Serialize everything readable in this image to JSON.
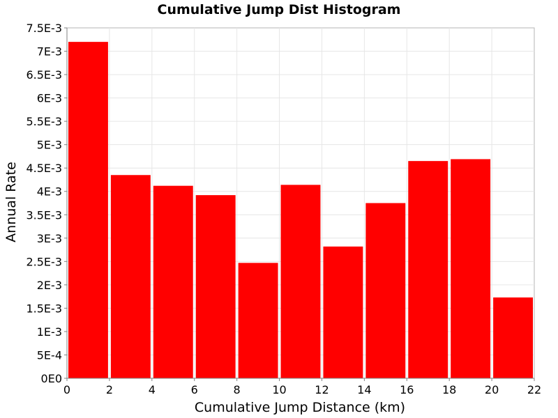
{
  "chart_data": {
    "type": "bar",
    "title": "Cumulative Jump Dist Histogram",
    "xlabel": "Cumulative Jump Distance (km)",
    "ylabel": "Annual Rate",
    "xlim": [
      0,
      22
    ],
    "ylim": [
      0,
      0.0075
    ],
    "x_ticks": [
      0,
      2,
      4,
      6,
      8,
      10,
      12,
      14,
      16,
      18,
      20,
      22
    ],
    "y_ticks": [
      0,
      0.0005,
      0.001,
      0.0015,
      0.002,
      0.0025,
      0.003,
      0.0035,
      0.004,
      0.0045,
      0.005,
      0.0055,
      0.006,
      0.0065,
      0.007,
      0.0075
    ],
    "y_tick_labels": [
      "0E0",
      "5E-4",
      "1E-3",
      "1.5E-3",
      "2E-3",
      "2.5E-3",
      "3E-3",
      "3.5E-3",
      "4E-3",
      "4.5E-3",
      "5E-3",
      "5.5E-3",
      "6E-3",
      "6.5E-3",
      "7E-3",
      "7.5E-3"
    ],
    "bins": [
      {
        "x_start": 0,
        "x_end": 2,
        "value": 0.0072
      },
      {
        "x_start": 2,
        "x_end": 4,
        "value": 0.00435
      },
      {
        "x_start": 4,
        "x_end": 6,
        "value": 0.00412
      },
      {
        "x_start": 6,
        "x_end": 8,
        "value": 0.00392
      },
      {
        "x_start": 8,
        "x_end": 10,
        "value": 0.00247
      },
      {
        "x_start": 10,
        "x_end": 12,
        "value": 0.00414
      },
      {
        "x_start": 12,
        "x_end": 14,
        "value": 0.00282
      },
      {
        "x_start": 14,
        "x_end": 16,
        "value": 0.00375
      },
      {
        "x_start": 16,
        "x_end": 18,
        "value": 0.00465
      },
      {
        "x_start": 18,
        "x_end": 20,
        "value": 0.00469
      },
      {
        "x_start": 20,
        "x_end": 22,
        "value": 0.00173
      }
    ],
    "bar_color": "#ff0000",
    "grid": true,
    "legend": false
  }
}
